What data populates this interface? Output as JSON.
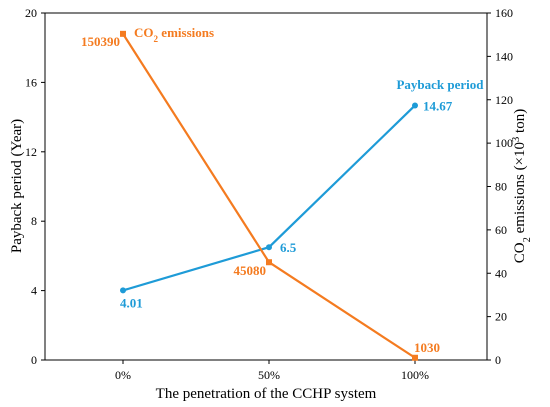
{
  "chart_data": {
    "type": "line",
    "categories": [
      "0%",
      "50%",
      "100%"
    ],
    "xlabel": "The penetration of the CCHP system",
    "y_left": {
      "label": "Payback period (Year)",
      "ylim": [
        0,
        20
      ],
      "ticks": [
        "0",
        "4",
        "8",
        "12",
        "16",
        "20"
      ]
    },
    "y_right": {
      "label_parts": [
        "CO",
        "2",
        " emissions  (×10",
        "3",
        " ton)"
      ],
      "ylim": [
        0,
        160
      ],
      "ticks": [
        "0",
        "20",
        "40",
        "60",
        "80",
        "100",
        "120",
        "140",
        "160"
      ]
    },
    "series": [
      {
        "name_parts": [
          "Payback period"
        ],
        "axis": "left",
        "color": "#1E9BD7",
        "values": [
          4.01,
          6.5,
          14.67
        ],
        "labels": [
          "4.01",
          "6.5",
          "14.67"
        ]
      },
      {
        "name_parts": [
          "CO",
          "2",
          " emissions"
        ],
        "axis": "right",
        "color": "#F47B20",
        "values": [
          150.39,
          45.08,
          1.03
        ],
        "labels": [
          "150390",
          "45080",
          "1030"
        ]
      }
    ],
    "grid": false,
    "legend": "none"
  }
}
